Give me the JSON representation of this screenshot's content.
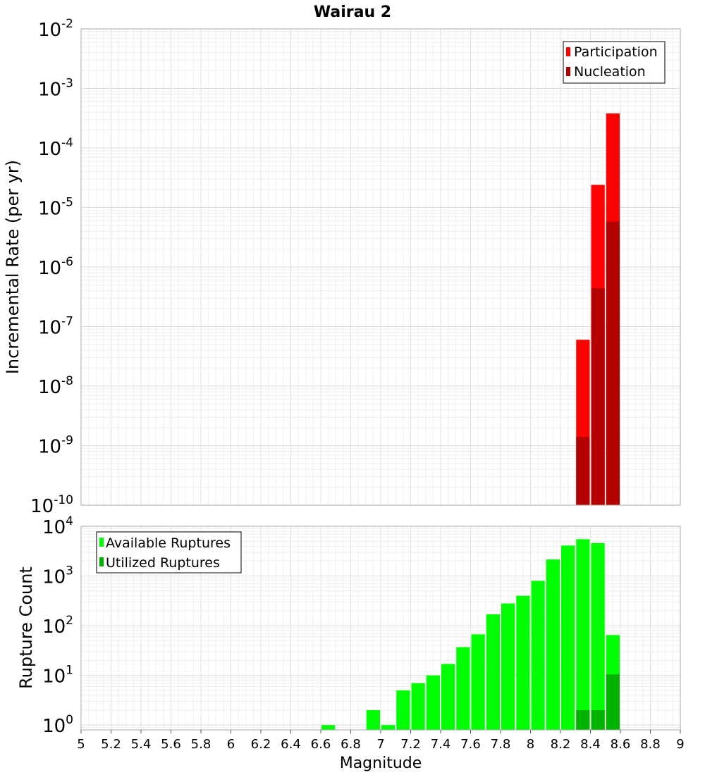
{
  "chart_data": [
    {
      "type": "bar",
      "title": "Wairau 2",
      "xlabel": "",
      "ylabel": "Incremental Rate (per yr)",
      "y_scale": "log",
      "ylim": [
        1e-10,
        0.01
      ],
      "xlim": [
        5,
        9
      ],
      "y_ticks": [
        {
          "base": "10",
          "exp": "-10",
          "value": 1e-10
        },
        {
          "base": "10",
          "exp": "-9",
          "value": 1e-09
        },
        {
          "base": "10",
          "exp": "-8",
          "value": 1e-08
        },
        {
          "base": "10",
          "exp": "-7",
          "value": 1e-07
        },
        {
          "base": "10",
          "exp": "-6",
          "value": 1e-06
        },
        {
          "base": "10",
          "exp": "-5",
          "value": 1e-05
        },
        {
          "base": "10",
          "exp": "-4",
          "value": 0.0001
        },
        {
          "base": "10",
          "exp": "-3",
          "value": 0.001
        },
        {
          "base": "10",
          "exp": "-2",
          "value": 0.01
        }
      ],
      "grid": true,
      "legend_position": "top-right",
      "series": [
        {
          "name": "Participation",
          "color": "#ff0000",
          "points": [
            {
              "x": 8.35,
              "y": 6e-08
            },
            {
              "x": 8.45,
              "y": 2.4e-05
            },
            {
              "x": 8.55,
              "y": 0.00038
            }
          ]
        },
        {
          "name": "Nucleation",
          "color": "#b30000",
          "points": [
            {
              "x": 8.35,
              "y": 1.4e-09
            },
            {
              "x": 8.45,
              "y": 4.4e-07
            },
            {
              "x": 8.55,
              "y": 5.8e-06
            }
          ]
        }
      ]
    },
    {
      "type": "bar",
      "title": "",
      "xlabel": "Magnitude",
      "ylabel": "Rupture Count",
      "y_scale": "log",
      "ylim": [
        0.8,
        10000
      ],
      "xlim": [
        5,
        9
      ],
      "y_ticks": [
        {
          "base": "10",
          "exp": "0",
          "value": 1
        },
        {
          "base": "10",
          "exp": "1",
          "value": 10
        },
        {
          "base": "10",
          "exp": "2",
          "value": 100
        },
        {
          "base": "10",
          "exp": "3",
          "value": 1000
        },
        {
          "base": "10",
          "exp": "4",
          "value": 10000
        }
      ],
      "x_ticks": [
        "5",
        "5.2",
        "5.4",
        "5.6",
        "5.8",
        "6",
        "6.2",
        "6.4",
        "6.6",
        "6.8",
        "7",
        "7.2",
        "7.4",
        "7.6",
        "7.8",
        "8",
        "8.2",
        "8.4",
        "8.6",
        "8.8",
        "9"
      ],
      "grid": true,
      "legend_position": "top-left",
      "series": [
        {
          "name": "Available Ruptures",
          "color": "#00ff00",
          "points": [
            {
              "x": 6.65,
              "y": 1
            },
            {
              "x": 6.95,
              "y": 2
            },
            {
              "x": 7.05,
              "y": 1
            },
            {
              "x": 7.15,
              "y": 5
            },
            {
              "x": 7.25,
              "y": 7
            },
            {
              "x": 7.35,
              "y": 10
            },
            {
              "x": 7.45,
              "y": 17
            },
            {
              "x": 7.55,
              "y": 37
            },
            {
              "x": 7.65,
              "y": 67
            },
            {
              "x": 7.75,
              "y": 170
            },
            {
              "x": 7.85,
              "y": 280
            },
            {
              "x": 7.95,
              "y": 400
            },
            {
              "x": 8.05,
              "y": 800
            },
            {
              "x": 8.15,
              "y": 2150
            },
            {
              "x": 8.25,
              "y": 4100
            },
            {
              "x": 8.35,
              "y": 5500
            },
            {
              "x": 8.45,
              "y": 4600
            },
            {
              "x": 8.55,
              "y": 65
            }
          ]
        },
        {
          "name": "Utilized Ruptures",
          "color": "#00b300",
          "points": [
            {
              "x": 8.35,
              "y": 2
            },
            {
              "x": 8.45,
              "y": 2
            },
            {
              "x": 8.55,
              "y": 10.5
            }
          ]
        }
      ]
    }
  ]
}
